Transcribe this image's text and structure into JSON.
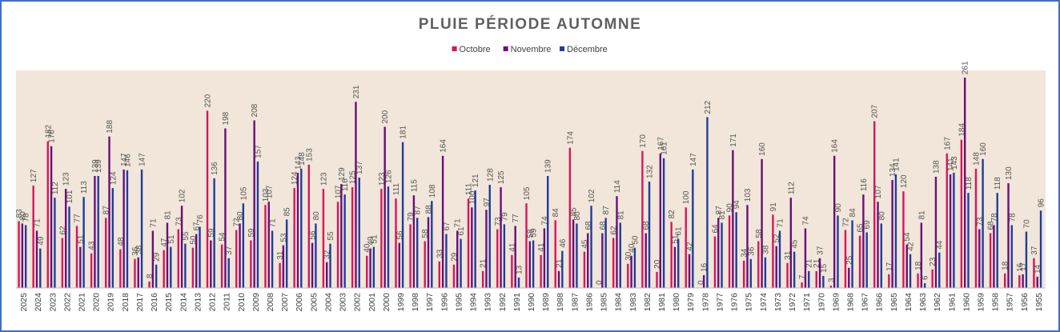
{
  "chart_data": {
    "type": "bar",
    "title": "PLUIE PÉRIODE AUTOMNE",
    "xlabel": "",
    "ylabel": "",
    "ylim": [
      0,
      270
    ],
    "legend_position": "top-center",
    "grid": false,
    "colors": {
      "Octobre": "#d6165c",
      "Novembre": "#6a0f7a",
      "Décembre": "#1f3d9c"
    },
    "plot_background": "#f1e6d9",
    "categories": [
      "2025",
      "2024",
      "2023",
      "2022",
      "2021",
      "2020",
      "2019",
      "2018",
      "2017",
      "2016",
      "2015",
      "2014",
      "2013",
      "2012",
      "2011",
      "2010",
      "2009",
      "2008",
      "2007",
      "2006",
      "2005",
      "2004",
      "2003",
      "2002",
      "2001",
      "2000",
      "1999",
      "1998",
      "1997",
      "1996",
      "1995",
      "1994",
      "1993",
      "1992",
      "1991",
      "1990",
      "1989",
      "1988",
      "1987",
      "1986",
      "1985",
      "1984",
      "1983",
      "1982",
      "1981",
      "1980",
      "1979",
      "1978",
      "1977",
      "1976",
      "1975",
      "1974",
      "1973",
      "1972",
      "1971",
      "1970",
      "1969",
      "1968",
      "1967",
      "1966",
      "1965",
      "1964",
      "1963",
      "1962",
      "1961",
      "1960",
      "1959",
      "1958",
      "1957",
      "1956",
      "1955"
    ],
    "series": [
      {
        "name": "Octobre",
        "values": [
          83,
          127,
          182,
          62,
          77,
          43,
          87,
          48,
          36,
          8,
          47,
          73,
          50,
          220,
          54,
          72,
          59,
          103,
          31,
          124,
          153,
          123,
          107,
          125,
          40,
          123,
          111,
          79,
          58,
          33,
          29,
          111,
          21,
          73,
          41,
          105,
          41,
          84,
          174,
          45,
          0,
          62,
          30,
          170,
          20,
          82,
          100,
          0,
          64,
          90,
          34,
          58,
          91,
          31,
          7,
          21,
          3,
          72,
          65,
          207,
          17,
          120,
          18,
          23,
          167,
          184,
          148,
          68,
          18,
          16,
          37
        ]
      },
      {
        "name": "Novembre",
        "values": [
          80,
          71,
          176,
          123,
          51,
          139,
          188,
          147,
          38,
          71,
          81,
          102,
          67,
          59,
          198,
          80,
          208,
          107,
          53,
          143,
          56,
          32,
          129,
          231,
          49,
          200,
          56,
          115,
          88,
          164,
          71,
          100,
          97,
          125,
          77,
          58,
          74,
          21,
          85,
          68,
          68,
          114,
          40,
          68,
          167,
          51,
          42,
          16,
          87,
          171,
          103,
          160,
          52,
          112,
          74,
          37,
          164,
          25,
          116,
          107,
          134,
          54,
          81,
          138,
          141,
          261,
          73,
          78,
          130,
          17,
          14
        ]
      },
      {
        "name": "Décembre",
        "values": [
          78,
          49,
          112,
          101,
          113,
          139,
          124,
          146,
          147,
          29,
          51,
          55,
          76,
          136,
          37,
          105,
          157,
          71,
          85,
          148,
          80,
          55,
          116,
          137,
          51,
          126,
          181,
          87,
          108,
          67,
          61,
          121,
          128,
          79,
          13,
          59,
          139,
          46,
          80,
          102,
          87,
          81,
          50,
          132,
          161,
          61,
          147,
          212,
          81,
          94,
          36,
          38,
          71,
          45,
          21,
          15,
          90,
          84,
          69,
          80,
          141,
          42,
          6,
          44,
          143,
          118,
          160,
          118,
          78,
          70,
          96
        ]
      }
    ]
  }
}
